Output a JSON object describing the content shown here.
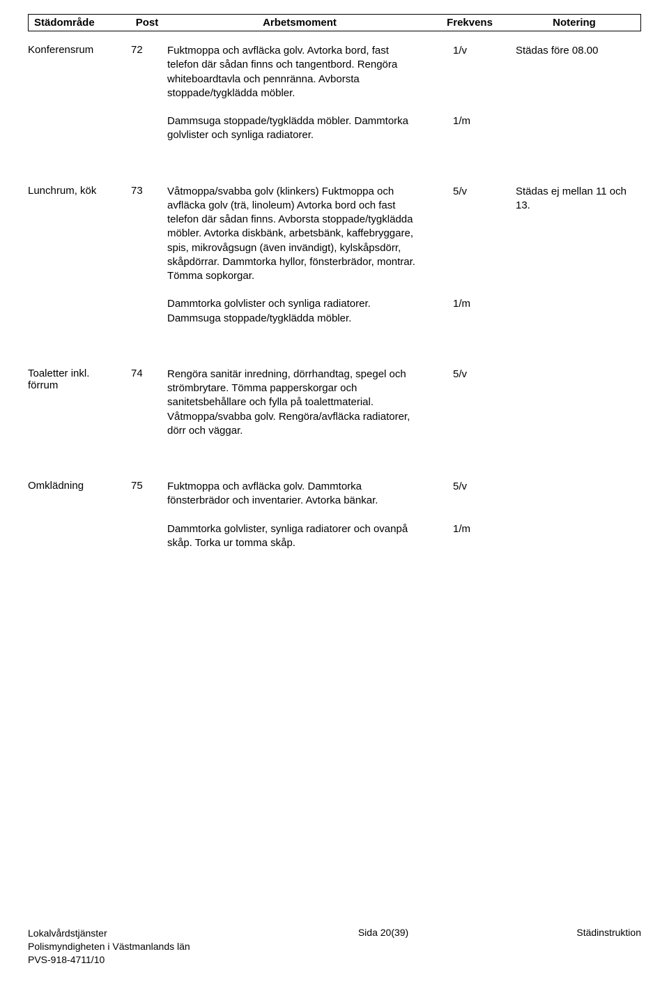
{
  "headers": {
    "area": "Städområde",
    "post": "Post",
    "task": "Arbetsmoment",
    "freq": "Frekvens",
    "note": "Notering"
  },
  "sections": [
    {
      "area": "Konferensrum",
      "post": "72",
      "blocks": [
        {
          "text": "Fuktmoppa och avfläcka golv. Avtorka bord, fast telefon där sådan finns och tangentbord. Rengöra whiteboardtavla och pennränna. Avborsta stoppade/tygklädda möbler.",
          "freq": "1/v",
          "note": "Städas före 08.00"
        },
        {
          "text": "Dammsuga stoppade/tygklädda möbler. Dammtorka golvlister och synliga radiatorer.",
          "freq": "1/m",
          "note": ""
        }
      ]
    },
    {
      "area": "Lunchrum, kök",
      "post": "73",
      "blocks": [
        {
          "text": "Våtmoppa/svabba golv (klinkers) Fuktmoppa och avfläcka golv (trä, linoleum) Avtorka bord och fast telefon där sådan finns. Avborsta stoppade/tygklädda möbler. Avtorka diskbänk, arbetsbänk, kaffebryggare, spis, mikrovågsugn (även invändigt), kylskåpsdörr, skåpdörrar. Dammtorka hyllor, fönsterbrädor, montrar. Tömma sopkorgar.",
          "freq": "5/v",
          "note": "Städas ej mellan 11 och 13."
        },
        {
          "text": "Dammtorka golvlister och synliga radiatorer. Dammsuga stoppade/tygklädda möbler.",
          "freq": "1/m",
          "note": ""
        }
      ]
    },
    {
      "area": "Toaletter inkl. förrum",
      "post": "74",
      "blocks": [
        {
          "text": "Rengöra sanitär inredning, dörrhandtag, spegel och strömbrytare. Tömma papperskorgar och sanitetsbehållare och fylla på toalettmaterial. Våtmoppa/svabba golv. Rengöra/avfläcka radiatorer, dörr och väggar.",
          "freq": "5/v",
          "note": ""
        }
      ]
    },
    {
      "area": "Omklädning",
      "post": "75",
      "blocks": [
        {
          "text": "Fuktmoppa och avfläcka golv. Dammtorka fönsterbrädor och inventarier. Avtorka bänkar.",
          "freq": "5/v",
          "note": ""
        },
        {
          "text": "Dammtorka golvlister, synliga radiatorer och ovanpå skåp. Torka ur tomma skåp.",
          "freq": "1/m",
          "note": ""
        }
      ]
    }
  ],
  "footer": {
    "left1": "Lokalvårdstjänster",
    "left2": "Polismyndigheten i Västmanlands län",
    "left3": "PVS-918-4711/10",
    "center": "Sida 20(39)",
    "right": "Städinstruktion"
  }
}
